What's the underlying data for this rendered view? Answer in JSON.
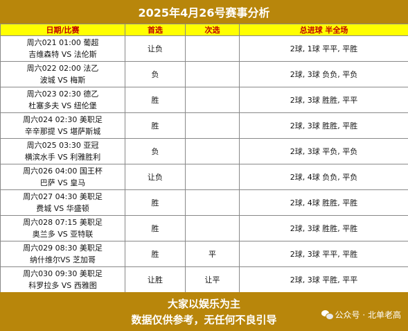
{
  "title": "2025年4月26号赛事分析",
  "headers": {
    "match": "日期/比赛",
    "first_pick": "首选",
    "second_pick": "次选",
    "goals": "总进球 半全场"
  },
  "rows": [
    {
      "line1": "周六021 01:00 葡超",
      "line2": "吉维森特 VS 法伦斯",
      "first": "让负",
      "second": "",
      "goals": "2球, 1球 平平, 平胜"
    },
    {
      "line1": "周六022 02:00 法乙",
      "line2": "波城 VS 梅斯",
      "first": "负",
      "second": "",
      "goals": "2球, 3球 负负, 平负"
    },
    {
      "line1": "周六023 02:30 德乙",
      "line2": "杜塞多夫 VS 纽伦堡",
      "first": "胜",
      "second": "",
      "goals": "2球, 3球 胜胜, 平平"
    },
    {
      "line1": "周六024 02:30 美职足",
      "line2": "辛辛那提 VS 堪萨斯城",
      "first": "胜",
      "second": "",
      "goals": "2球, 3球 胜胜, 平胜"
    },
    {
      "line1": "周六025 03:30 亚冠",
      "line2": "横滨水手 VS 利雅胜利",
      "first": "负",
      "second": "",
      "goals": "2球, 3球 平负, 平负"
    },
    {
      "line1": "周六026 04:00 国王杯",
      "line2": "巴萨 VS 皇马",
      "first": "让负",
      "second": "",
      "goals": "2球, 4球 负负, 平负"
    },
    {
      "line1": "周六027 04:30 美职足",
      "line2": "费城 VS 华盛顿",
      "first": "胜",
      "second": "",
      "goals": "2球, 4球 胜胜, 平胜"
    },
    {
      "line1": "周六028 07:15 美职足",
      "line2": "奥兰多 VS 亚特联",
      "first": "胜",
      "second": "",
      "goals": "2球, 3球 胜胜, 平胜"
    },
    {
      "line1": "周六029 08:30 美职足",
      "line2": "纳什维尔VS 芝加哥",
      "first": "胜",
      "second": "平",
      "goals": "2球, 3球 平平, 平胜"
    },
    {
      "line1": "周六030 09:30 美职足",
      "line2": "科罗拉多 VS 西雅图",
      "first": "让胜",
      "second": "让平",
      "goals": "2球, 3球 平胜, 平平"
    }
  ],
  "footer": {
    "line1": "大家以娱乐为主",
    "line2": "数据仅供参考，无任何不良引导",
    "watermark": "公众号 · 北单老高",
    "watermark_icon": "wechat-icon"
  },
  "colors": {
    "title_bg": "#b8860b",
    "header_bg": "#ffff00",
    "header_text": "#c00000"
  }
}
